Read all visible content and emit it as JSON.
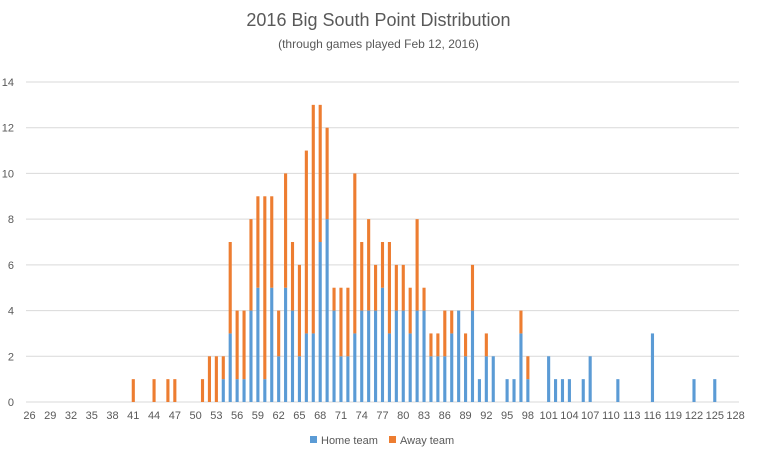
{
  "chart_data": {
    "type": "bar",
    "stacked": true,
    "title": "2016 Big South Point Distribution",
    "subtitle": "(through games played Feb 12, 2016)",
    "xlabel": "",
    "ylabel": "",
    "ylim": [
      0,
      14
    ],
    "yticks": [
      0,
      2,
      4,
      6,
      8,
      10,
      12,
      14
    ],
    "xlim": [
      26,
      128
    ],
    "xticks": [
      26,
      29,
      32,
      35,
      38,
      41,
      44,
      47,
      50,
      53,
      56,
      59,
      62,
      65,
      68,
      71,
      74,
      77,
      80,
      83,
      86,
      89,
      92,
      95,
      98,
      101,
      104,
      107,
      110,
      113,
      116,
      119,
      122,
      125,
      128
    ],
    "grid": true,
    "legend": "bottom",
    "colors": {
      "home": "#5b9bd5",
      "away": "#ed7d31",
      "grid": "#d9d9d9",
      "text": "#595959"
    },
    "series": [
      {
        "name": "Home team",
        "points": [
          [
            54,
            1
          ],
          [
            55,
            3
          ],
          [
            56,
            1
          ],
          [
            57,
            1
          ],
          [
            58,
            4
          ],
          [
            59,
            5
          ],
          [
            60,
            1
          ],
          [
            61,
            5
          ],
          [
            62,
            2
          ],
          [
            63,
            5
          ],
          [
            64,
            4
          ],
          [
            65,
            2
          ],
          [
            66,
            3
          ],
          [
            67,
            3
          ],
          [
            68,
            7
          ],
          [
            69,
            8
          ],
          [
            70,
            4
          ],
          [
            71,
            2
          ],
          [
            72,
            2
          ],
          [
            73,
            3
          ],
          [
            74,
            4
          ],
          [
            75,
            4
          ],
          [
            76,
            4
          ],
          [
            77,
            5
          ],
          [
            78,
            3
          ],
          [
            79,
            4
          ],
          [
            80,
            4
          ],
          [
            81,
            3
          ],
          [
            82,
            4
          ],
          [
            83,
            4
          ],
          [
            84,
            2
          ],
          [
            85,
            2
          ],
          [
            86,
            2
          ],
          [
            87,
            3
          ],
          [
            88,
            4
          ],
          [
            89,
            2
          ],
          [
            90,
            4
          ],
          [
            91,
            1
          ],
          [
            92,
            2
          ],
          [
            93,
            2
          ],
          [
            95,
            1
          ],
          [
            96,
            1
          ],
          [
            97,
            3
          ],
          [
            98,
            1
          ],
          [
            101,
            2
          ],
          [
            102,
            1
          ],
          [
            103,
            1
          ],
          [
            104,
            1
          ],
          [
            106,
            1
          ],
          [
            107,
            2
          ],
          [
            111,
            1
          ],
          [
            116,
            3
          ],
          [
            122,
            1
          ],
          [
            125,
            1
          ]
        ]
      },
      {
        "name": "Away team",
        "points": [
          [
            41,
            1
          ],
          [
            44,
            1
          ],
          [
            46,
            1
          ],
          [
            47,
            1
          ],
          [
            51,
            1
          ],
          [
            52,
            2
          ],
          [
            53,
            2
          ],
          [
            54,
            1
          ],
          [
            55,
            4
          ],
          [
            56,
            3
          ],
          [
            57,
            3
          ],
          [
            58,
            4
          ],
          [
            59,
            4
          ],
          [
            60,
            8
          ],
          [
            61,
            4
          ],
          [
            62,
            2
          ],
          [
            63,
            5
          ],
          [
            64,
            3
          ],
          [
            65,
            4
          ],
          [
            66,
            8
          ],
          [
            67,
            10
          ],
          [
            68,
            6
          ],
          [
            69,
            4
          ],
          [
            70,
            1
          ],
          [
            71,
            3
          ],
          [
            72,
            3
          ],
          [
            73,
            7
          ],
          [
            74,
            3
          ],
          [
            75,
            4
          ],
          [
            76,
            2
          ],
          [
            77,
            2
          ],
          [
            78,
            4
          ],
          [
            79,
            2
          ],
          [
            80,
            2
          ],
          [
            81,
            2
          ],
          [
            82,
            4
          ],
          [
            83,
            1
          ],
          [
            84,
            1
          ],
          [
            85,
            1
          ],
          [
            86,
            2
          ],
          [
            87,
            1
          ],
          [
            89,
            1
          ],
          [
            90,
            2
          ],
          [
            92,
            1
          ],
          [
            97,
            1
          ],
          [
            98,
            1
          ]
        ]
      }
    ]
  }
}
